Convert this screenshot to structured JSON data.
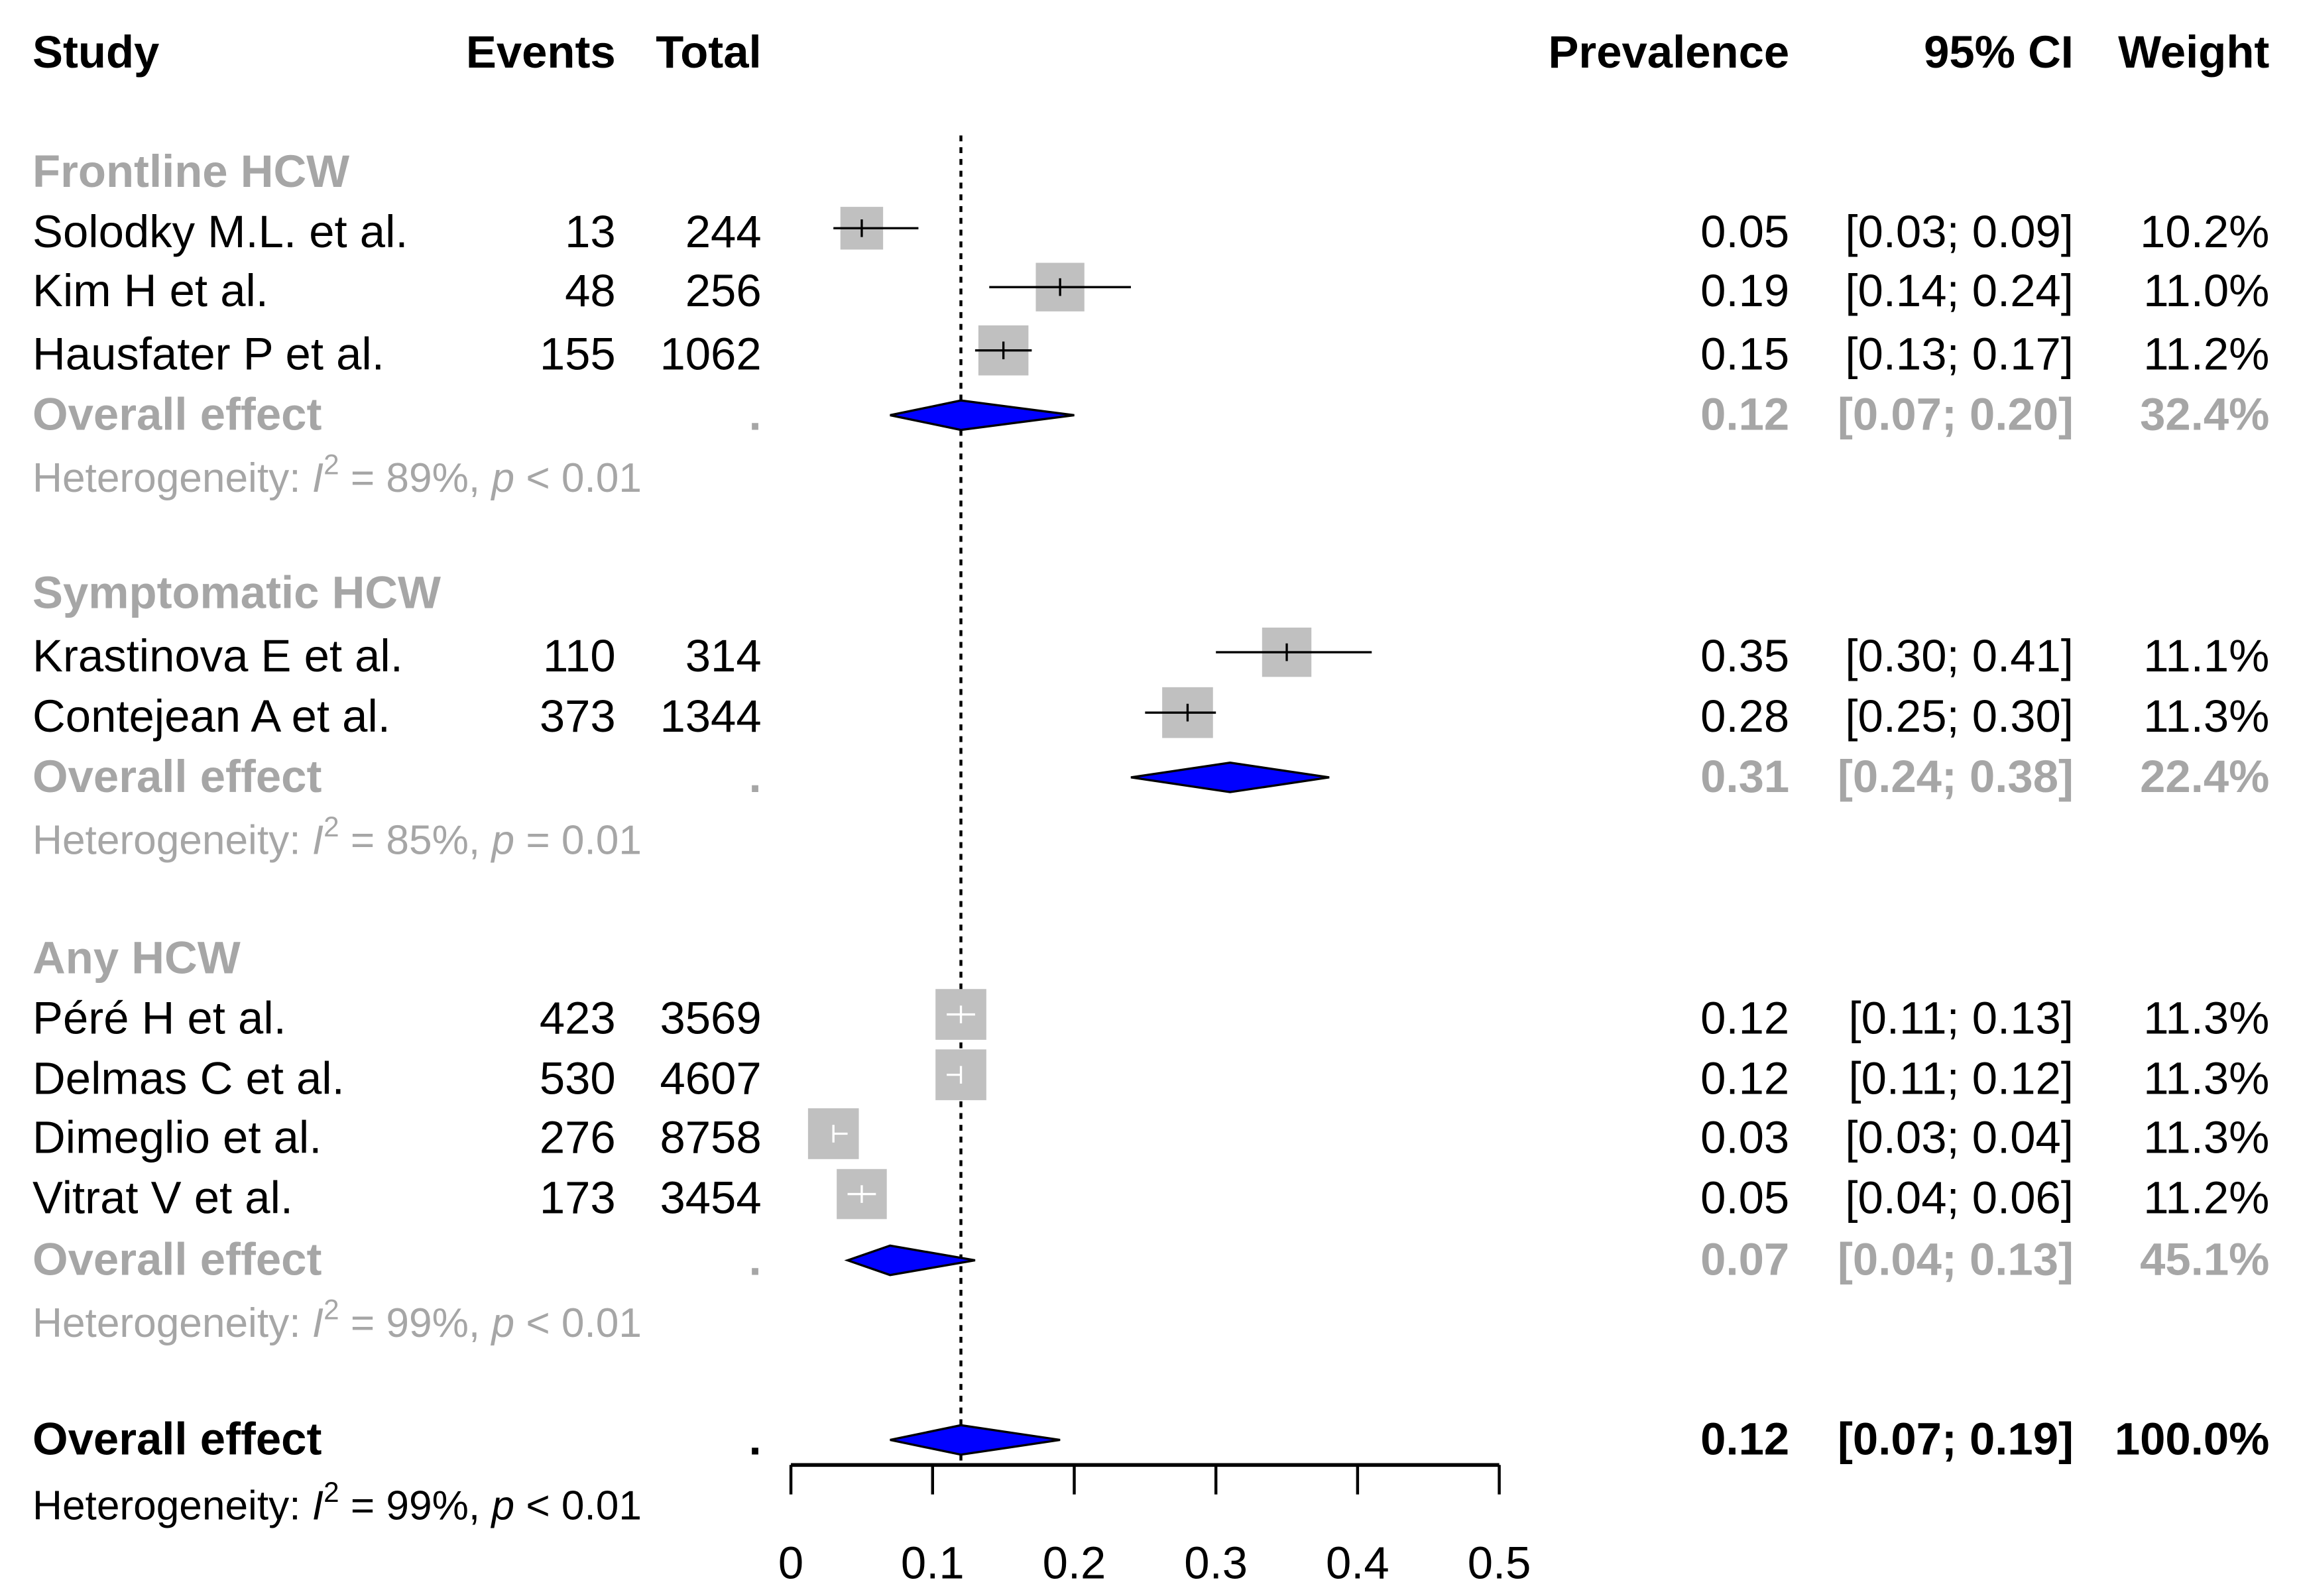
{
  "chart_data": {
    "type": "forest",
    "headers": {
      "study": "Study",
      "events": "Events",
      "total": "Total",
      "prevalence": "Prevalence",
      "ci": "95% CI",
      "weight": "Weight"
    },
    "xlim": [
      0,
      0.5
    ],
    "ticks": [
      "0",
      "0.1",
      "0.2",
      "0.3",
      "0.4",
      "0.5"
    ],
    "reference_line": 0.12,
    "colors": {
      "box": "#c0c0c0",
      "diamond": "#0000ff",
      "subgroup_text": "#a6a6a6"
    },
    "groups": [
      {
        "name": "Frontline HCW",
        "studies": [
          {
            "study": "Solodky M.L. et al.",
            "events": "13",
            "total": "244",
            "est": 0.05,
            "lo": 0.03,
            "hi": 0.09,
            "prev": "0.05",
            "ci": "[0.03; 0.09]",
            "weight": "10.2%"
          },
          {
            "study": "Kim H et al.",
            "events": "48",
            "total": "256",
            "est": 0.19,
            "lo": 0.14,
            "hi": 0.24,
            "prev": "0.19",
            "ci": "[0.14; 0.24]",
            "weight": "11.0%"
          },
          {
            "study": "Hausfater P et al.",
            "events": "155",
            "total": "1062",
            "est": 0.15,
            "lo": 0.13,
            "hi": 0.17,
            "prev": "0.15",
            "ci": "[0.13; 0.17]",
            "weight": "11.2%"
          }
        ],
        "overall": {
          "label": "Overall effect",
          "dot": ".",
          "est": 0.12,
          "lo": 0.07,
          "hi": 0.2,
          "prev": "0.12",
          "ci": "[0.07; 0.20]",
          "weight": "32.4%"
        },
        "het": {
          "label": "Heterogeneity: ",
          "i": "I",
          "sup": "2",
          "i2": " = 89%, ",
          "p": "p",
          "pval": " < 0.01"
        }
      },
      {
        "name": "Symptomatic HCW",
        "studies": [
          {
            "study": "Krastinova E et al.",
            "events": "110",
            "total": "314",
            "est": 0.35,
            "lo": 0.3,
            "hi": 0.41,
            "prev": "0.35",
            "ci": "[0.30; 0.41]",
            "weight": "11.1%"
          },
          {
            "study": "Contejean A et al.",
            "events": "373",
            "total": "1344",
            "est": 0.28,
            "lo": 0.25,
            "hi": 0.3,
            "prev": "0.28",
            "ci": "[0.25; 0.30]",
            "weight": "11.3%"
          }
        ],
        "overall": {
          "label": "Overall effect",
          "dot": ".",
          "est": 0.31,
          "lo": 0.24,
          "hi": 0.38,
          "prev": "0.31",
          "ci": "[0.24; 0.38]",
          "weight": "22.4%"
        },
        "het": {
          "label": "Heterogeneity: ",
          "i": "I",
          "sup": "2",
          "i2": " = 85%, ",
          "p": "p",
          "pval": " = 0.01"
        }
      },
      {
        "name": "Any HCW",
        "studies": [
          {
            "study": "Péré H et al.",
            "events": "423",
            "total": "3569",
            "est": 0.12,
            "lo": 0.11,
            "hi": 0.13,
            "prev": "0.12",
            "ci": "[0.11; 0.13]",
            "weight": "11.3%"
          },
          {
            "study": "Delmas C et al.",
            "events": "530",
            "total": "4607",
            "est": 0.12,
            "lo": 0.11,
            "hi": 0.12,
            "prev": "0.12",
            "ci": "[0.11; 0.12]",
            "weight": "11.3%"
          },
          {
            "study": "Dimeglio et al.",
            "events": "276",
            "total": "8758",
            "est": 0.03,
            "lo": 0.03,
            "hi": 0.04,
            "prev": "0.03",
            "ci": "[0.03; 0.04]",
            "weight": "11.3%"
          },
          {
            "study": "Vitrat V et al.",
            "events": "173",
            "total": "3454",
            "est": 0.05,
            "lo": 0.04,
            "hi": 0.06,
            "prev": "0.05",
            "ci": "[0.04; 0.06]",
            "weight": "11.2%"
          }
        ],
        "overall": {
          "label": "Overall effect",
          "dot": ".",
          "est": 0.07,
          "lo": 0.04,
          "hi": 0.13,
          "prev": "0.07",
          "ci": "[0.04; 0.13]",
          "weight": "45.1%"
        },
        "het": {
          "label": "Heterogeneity: ",
          "i": "I",
          "sup": "2",
          "i2": " = 99%, ",
          "p": "p",
          "pval": " < 0.01"
        }
      }
    ],
    "overall": {
      "label": "Overall effect",
      "dot": ".",
      "est": 0.12,
      "lo": 0.07,
      "hi": 0.19,
      "prev": "0.12",
      "ci": "[0.07; 0.19]",
      "weight": "100.0%"
    },
    "overall_het": {
      "label": "Heterogeneity: ",
      "i": "I",
      "sup": "2",
      "i2": " = 99%, ",
      "p": "p",
      "pval": " < 0.01"
    }
  }
}
